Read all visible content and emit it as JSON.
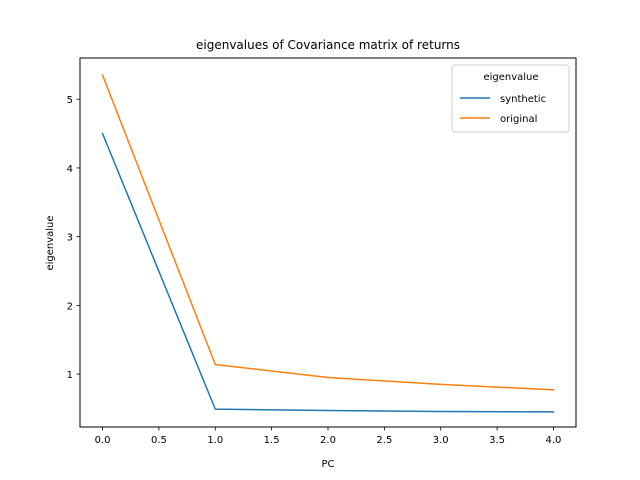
{
  "chart_data": {
    "type": "line",
    "title": "eigenvalues of Covariance matrix of returns",
    "xlabel": "PC",
    "ylabel": "eigenvalue",
    "xlim": [
      -0.2,
      4.2
    ],
    "ylim": [
      0.23,
      5.6
    ],
    "xticks": [
      0.0,
      0.5,
      1.0,
      1.5,
      2.0,
      2.5,
      3.0,
      3.5,
      4.0
    ],
    "xtick_labels": [
      "0.0",
      "0.5",
      "1.0",
      "1.5",
      "2.0",
      "2.5",
      "3.0",
      "3.5",
      "4.0"
    ],
    "yticks": [
      1,
      2,
      3,
      4,
      5
    ],
    "ytick_labels": [
      "1",
      "2",
      "3",
      "4",
      "5"
    ],
    "grid": false,
    "legend": {
      "title": "eigenvalue",
      "placement": "upper right"
    },
    "x": [
      0,
      1,
      2,
      3,
      4
    ],
    "series": [
      {
        "name": "synthetic",
        "color": "#1f77b4",
        "values": [
          4.5,
          0.49,
          0.47,
          0.455,
          0.45
        ]
      },
      {
        "name": "original",
        "color": "#ff7f0e",
        "values": [
          5.35,
          1.14,
          0.95,
          0.85,
          0.77
        ]
      }
    ]
  }
}
